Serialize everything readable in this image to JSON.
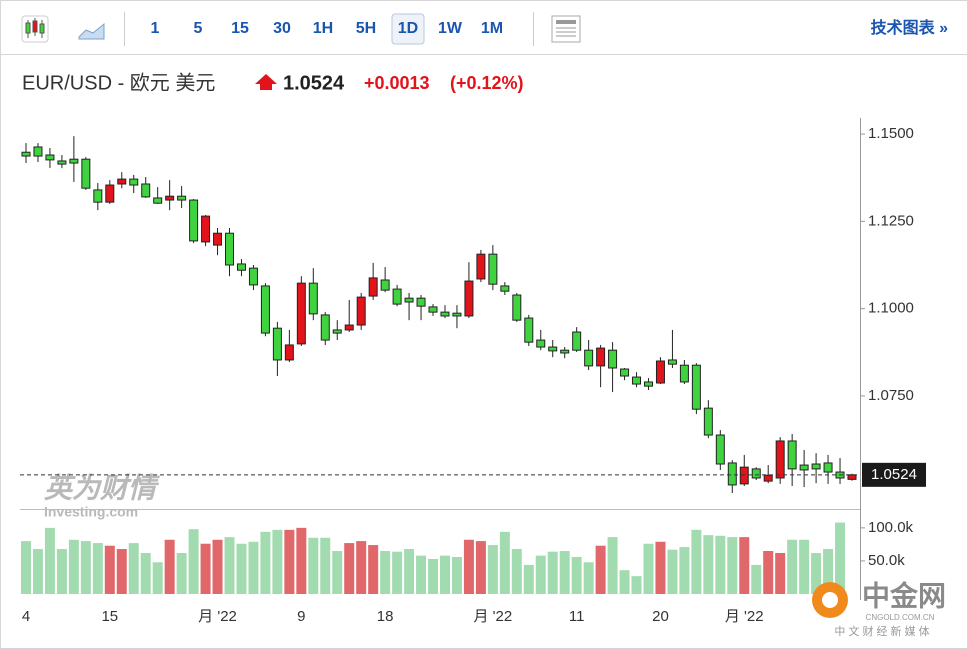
{
  "toolbar": {
    "intervals": [
      "1",
      "5",
      "15",
      "30",
      "1H",
      "5H",
      "1D",
      "1W",
      "1M"
    ],
    "active": "1D",
    "technical_link": "技术图表 »"
  },
  "header": {
    "symbol": "EUR/USD - 欧元 美元",
    "price": "1.0524",
    "change": "+0.0013",
    "change_pct": "(+0.12%)"
  },
  "watermark": {
    "brand": "英为财情",
    "site": "Investing.com"
  },
  "logo": {
    "name": "中金网",
    "domain": "CNGOLD.COM.CN",
    "slogan": "中 文 财 经 新 媒 体"
  },
  "chart_data": {
    "type": "candlestick",
    "categories": [
      "4",
      null,
      null,
      null,
      null,
      null,
      null,
      "15",
      null,
      null,
      null,
      null,
      null,
      null,
      null,
      null,
      "月 '22",
      null,
      null,
      null,
      null,
      null,
      null,
      "9",
      null,
      null,
      null,
      null,
      null,
      null,
      "18",
      null,
      null,
      null,
      null,
      null,
      null,
      null,
      null,
      "月 '22",
      null,
      null,
      null,
      null,
      null,
      null,
      "11",
      null,
      null,
      null,
      null,
      null,
      null,
      "20",
      null,
      null,
      null,
      null,
      null,
      null,
      "月 '22",
      null,
      null,
      null,
      null,
      null,
      null,
      null,
      null,
      null
    ],
    "open": [
      1.1448,
      1.1463,
      1.144,
      1.1423,
      1.1428,
      1.1428,
      1.134,
      1.1305,
      1.1357,
      1.1371,
      1.1357,
      1.1317,
      1.1311,
      1.1322,
      1.1311,
      1.1191,
      1.1182,
      1.1216,
      1.1128,
      1.1116,
      1.1065,
      1.0944,
      1.0853,
      1.0899,
      1.1073,
      1.0982,
      1.0939,
      1.0939,
      1.0953,
      1.1036,
      1.1082,
      1.1056,
      1.103,
      1.103,
      1.1005,
      1.099,
      1.0987,
      1.0979,
      1.1085,
      1.1156,
      1.1065,
      1.1039,
      1.0973,
      1.091,
      1.089,
      1.0881,
      1.0933,
      1.0881,
      1.0836,
      1.0881,
      1.0827,
      1.0804,
      1.079,
      1.0787,
      1.0853,
      1.0838,
      1.0838,
      1.0715,
      1.0638,
      1.0558,
      1.0498,
      1.0541,
      1.0506,
      1.0515,
      1.0621,
      1.0552,
      1.0555,
      1.0558,
      1.0532,
      1.0511
    ],
    "high": [
      1.1474,
      1.1474,
      1.146,
      1.144,
      1.1494,
      1.1434,
      1.136,
      1.1368,
      1.1391,
      1.1383,
      1.1377,
      1.1348,
      1.1368,
      1.1351,
      1.1314,
      1.1268,
      1.1231,
      1.1231,
      1.1142,
      1.1125,
      1.1073,
      1.0962,
      1.0939,
      1.1093,
      1.1116,
      1.099,
      1.0967,
      1.1025,
      1.1045,
      1.1131,
      1.1119,
      1.1068,
      1.1045,
      1.1039,
      1.1013,
      1.101,
      1.101,
      1.1133,
      1.1168,
      1.1182,
      1.1076,
      1.1045,
      1.0982,
      1.0939,
      1.091,
      1.089,
      1.0947,
      1.091,
      1.0896,
      1.0904,
      1.083,
      1.0818,
      1.0801,
      1.0861,
      1.0939,
      1.0853,
      1.0844,
      1.0738,
      1.0652,
      1.0566,
      1.0581,
      1.0546,
      1.0552,
      1.0632,
      1.0641,
      1.0595,
      1.0586,
      1.0581,
      1.0572,
      1.0527
    ],
    "low": [
      1.1417,
      1.142,
      1.1403,
      1.1403,
      1.1363,
      1.134,
      1.1282,
      1.13,
      1.1345,
      1.1331,
      1.1317,
      1.13,
      1.1282,
      1.1288,
      1.1188,
      1.1179,
      1.1153,
      1.1093,
      1.1093,
      1.1053,
      1.0921,
      1.0807,
      1.0847,
      1.0893,
      1.0967,
      1.0896,
      1.091,
      1.0933,
      1.0939,
      1.1025,
      1.1047,
      1.1007,
      1.0967,
      1.0967,
      1.0979,
      1.0973,
      1.0944,
      1.0973,
      1.1076,
      1.1053,
      1.1039,
      1.0962,
      1.0893,
      1.0881,
      1.0861,
      1.0858,
      1.0876,
      1.0824,
      1.0775,
      1.0761,
      1.0795,
      1.0775,
      1.0767,
      1.0784,
      1.083,
      1.0784,
      1.0698,
      1.0629,
      1.0538,
      1.0472,
      1.0492,
      1.0509,
      1.05,
      1.0498,
      1.0492,
      1.0489,
      1.05,
      1.0498,
      1.0498,
      1.0507
    ],
    "close": [
      1.1437,
      1.1437,
      1.1426,
      1.1414,
      1.1417,
      1.1345,
      1.1305,
      1.1354,
      1.1371,
      1.1354,
      1.132,
      1.1302,
      1.1322,
      1.1311,
      1.1194,
      1.1265,
      1.1216,
      1.1125,
      1.111,
      1.1068,
      1.093,
      1.0853,
      1.0896,
      1.1073,
      1.0985,
      1.091,
      1.093,
      1.0953,
      1.1033,
      1.1088,
      1.1053,
      1.1013,
      1.1019,
      1.1007,
      1.099,
      1.0979,
      1.0979,
      1.1079,
      1.1156,
      1.107,
      1.105,
      1.0967,
      1.0904,
      1.089,
      1.0879,
      1.0873,
      1.0881,
      1.0836,
      1.0887,
      1.083,
      1.0807,
      1.0784,
      1.0778,
      1.085,
      1.0841,
      1.079,
      1.0712,
      1.0638,
      1.0555,
      1.0495,
      1.0546,
      1.0515,
      1.0523,
      1.0621,
      1.0541,
      1.0538,
      1.0541,
      1.0532,
      1.0515,
      1.0524
    ],
    "up_color": "#e3131b",
    "down_color": "#3fd43f",
    "outline_color": "#222222",
    "ylim": [
      1.0429,
      1.1546
    ],
    "yticks": [
      {
        "value": 1.15,
        "label": "1.1500"
      },
      {
        "value": 1.125,
        "label": "1.1250"
      },
      {
        "value": 1.1,
        "label": "1.1000"
      },
      {
        "value": 1.075,
        "label": "1.0750"
      }
    ],
    "last_price": 1.0524,
    "volume": {
      "values": [
        80000,
        68000,
        100000,
        68000,
        82000,
        80000,
        77000,
        73000,
        68000,
        77000,
        62000,
        48000,
        82000,
        62000,
        98000,
        76000,
        82000,
        86000,
        76000,
        79000,
        94000,
        97000,
        97000,
        100000,
        85000,
        85000,
        65000,
        77000,
        80000,
        74000,
        65000,
        64000,
        68000,
        58000,
        53000,
        58000,
        56000,
        82000,
        80000,
        74000,
        94000,
        68000,
        44000,
        58000,
        64000,
        65000,
        56000,
        48000,
        73000,
        86000,
        36000,
        27000,
        76000,
        79000,
        67000,
        71000,
        97000,
        89000,
        88000,
        86000,
        86000,
        44000,
        65000,
        62000,
        82000,
        82000,
        62000,
        68000,
        108000,
        null
      ],
      "up_color": "#e0686b",
      "down_color": "#a3dbb0",
      "ylim": [
        0,
        127000
      ],
      "yticks": [
        {
          "value": 100000,
          "label": "100.0k"
        },
        {
          "value": 50000,
          "label": "50.0k"
        }
      ]
    }
  }
}
